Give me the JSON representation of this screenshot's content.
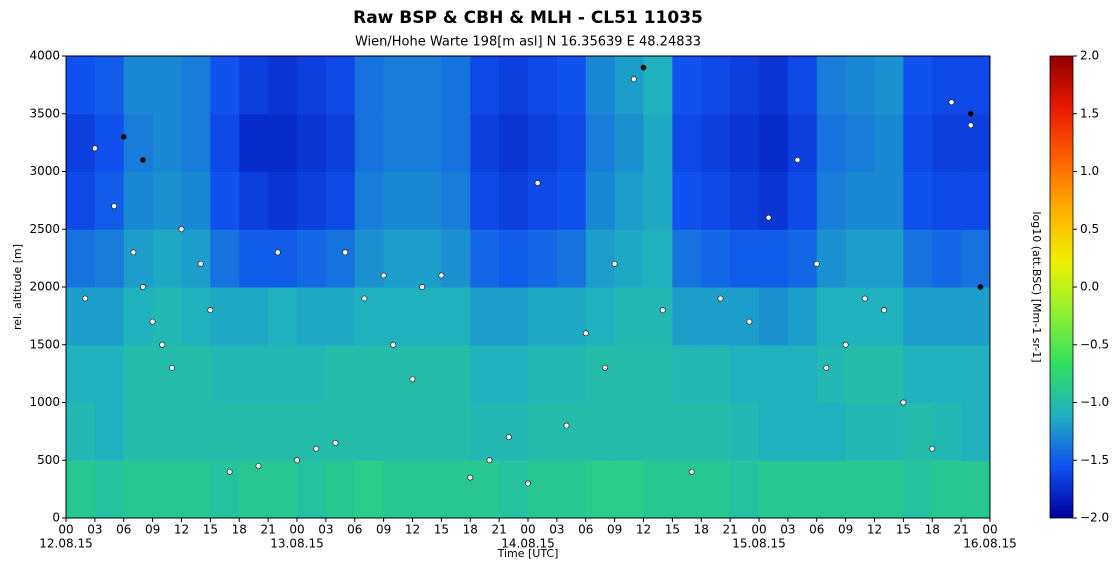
{
  "chart_data": {
    "type": "heatmap",
    "title": "Raw BSP & CBH & MLH - CL51 11035",
    "subtitle": "Wien/Hohe Warte   198[m asl]    N 16.35639  E 48.24833",
    "ylabel": "rel. altitude [m]",
    "xlabel": "Time [UTC]",
    "colorbar_label": "log10 (att.BSC) [Mm-1 sr-1]",
    "xlim": [
      0,
      96
    ],
    "ylim": [
      0,
      4000
    ],
    "yticks": [
      0,
      500,
      1000,
      1500,
      2000,
      2500,
      3000,
      3500,
      4000
    ],
    "xticks": [
      {
        "value": 0,
        "label": "00"
      },
      {
        "value": 3,
        "label": "03"
      },
      {
        "value": 6,
        "label": "06"
      },
      {
        "value": 9,
        "label": "09"
      },
      {
        "value": 12,
        "label": "12"
      },
      {
        "value": 15,
        "label": "15"
      },
      {
        "value": 18,
        "label": "18"
      },
      {
        "value": 21,
        "label": "21"
      },
      {
        "value": 24,
        "label": "00"
      },
      {
        "value": 27,
        "label": "03"
      },
      {
        "value": 30,
        "label": "06"
      },
      {
        "value": 33,
        "label": "09"
      },
      {
        "value": 36,
        "label": "12"
      },
      {
        "value": 39,
        "label": "15"
      },
      {
        "value": 42,
        "label": "18"
      },
      {
        "value": 45,
        "label": "21"
      },
      {
        "value": 48,
        "label": "00"
      },
      {
        "value": 51,
        "label": "03"
      },
      {
        "value": 54,
        "label": "06"
      },
      {
        "value": 57,
        "label": "09"
      },
      {
        "value": 60,
        "label": "12"
      },
      {
        "value": 63,
        "label": "15"
      },
      {
        "value": 66,
        "label": "18"
      },
      {
        "value": 69,
        "label": "21"
      },
      {
        "value": 72,
        "label": "00"
      },
      {
        "value": 75,
        "label": "03"
      },
      {
        "value": 78,
        "label": "06"
      },
      {
        "value": 81,
        "label": "09"
      },
      {
        "value": 84,
        "label": "12"
      },
      {
        "value": 87,
        "label": "15"
      },
      {
        "value": 90,
        "label": "18"
      },
      {
        "value": 93,
        "label": "21"
      },
      {
        "value": 96,
        "label": "00"
      }
    ],
    "xdate_ticks": [
      {
        "value": 0,
        "label": "12.08.15"
      },
      {
        "value": 24,
        "label": "13.08.15"
      },
      {
        "value": 48,
        "label": "14.08.15"
      },
      {
        "value": 72,
        "label": "15.08.15"
      },
      {
        "value": 96,
        "label": "16.08.15"
      }
    ],
    "clim": [
      -2,
      2
    ],
    "cticks": [
      {
        "value": 2,
        "label": "2.0"
      },
      {
        "value": 1.5,
        "label": "1.5"
      },
      {
        "value": 1,
        "label": "1.0"
      },
      {
        "value": 0.5,
        "label": "0.5"
      },
      {
        "value": 0,
        "label": "0.0"
      },
      {
        "value": -0.5,
        "label": "−0.5"
      },
      {
        "value": -1,
        "label": "−1.0"
      },
      {
        "value": -1.5,
        "label": "−1.5"
      },
      {
        "value": -2,
        "label": "−2.0"
      }
    ],
    "colormap": [
      "#00009a",
      "#1050f0",
      "#20b0c0",
      "#30e060",
      "#90f030",
      "#f0f000",
      "#ffb000",
      "#ff6000",
      "#e81800",
      "#900000"
    ],
    "xbins": [
      0,
      3,
      6,
      9,
      12,
      15,
      18,
      21,
      24,
      27,
      30,
      33,
      36,
      39,
      42,
      45,
      48,
      51,
      54,
      57,
      60,
      63,
      66,
      69,
      72,
      75,
      78,
      81,
      84,
      87,
      90,
      93,
      96
    ],
    "ybins": [
      0,
      500,
      1000,
      1500,
      2000,
      2500,
      3000,
      3500,
      4000
    ],
    "z": [
      [
        -0.9,
        -0.95,
        -0.9,
        -0.9,
        -0.9,
        -0.95,
        -0.9,
        -0.9,
        -0.95,
        -0.9,
        -0.85,
        -0.9,
        -0.9,
        -0.9,
        -0.9,
        -0.95,
        -0.9,
        -0.9,
        -0.85,
        -0.85,
        -0.9,
        -0.9,
        -0.9,
        -0.95,
        -0.9,
        -0.9,
        -0.9,
        -0.9,
        -0.9,
        -0.95,
        -0.9,
        -0.9
      ],
      [
        -1.05,
        -1.1,
        -1.0,
        -1.0,
        -1.0,
        -1.0,
        -1.0,
        -1.0,
        -1.0,
        -1.0,
        -1.0,
        -1.0,
        -1.0,
        -1.0,
        -1.05,
        -1.05,
        -1.0,
        -1.0,
        -1.0,
        -1.0,
        -1.0,
        -1.0,
        -1.0,
        -1.05,
        -1.1,
        -1.1,
        -1.1,
        -1.05,
        -1.05,
        -1.0,
        -1.05,
        -1.1
      ],
      [
        -1.1,
        -1.1,
        -1.0,
        -1.0,
        -1.0,
        -1.05,
        -1.05,
        -1.05,
        -1.05,
        -1.0,
        -1.0,
        -1.0,
        -1.0,
        -1.0,
        -1.1,
        -1.1,
        -1.05,
        -1.05,
        -1.0,
        -1.0,
        -1.0,
        -1.05,
        -1.05,
        -1.1,
        -1.1,
        -1.1,
        -1.05,
        -1.0,
        -1.0,
        -1.1,
        -1.1,
        -1.1
      ],
      [
        -1.2,
        -1.2,
        -1.1,
        -1.05,
        -1.1,
        -1.15,
        -1.15,
        -1.1,
        -1.15,
        -1.15,
        -1.1,
        -1.1,
        -1.1,
        -1.1,
        -1.2,
        -1.2,
        -1.15,
        -1.15,
        -1.1,
        -1.05,
        -1.05,
        -1.2,
        -1.2,
        -1.2,
        -1.25,
        -1.2,
        -1.1,
        -1.1,
        -1.1,
        -1.2,
        -1.2,
        -1.2
      ],
      [
        -1.4,
        -1.35,
        -1.2,
        -1.15,
        -1.2,
        -1.4,
        -1.5,
        -1.5,
        -1.45,
        -1.4,
        -1.25,
        -1.2,
        -1.2,
        -1.25,
        -1.45,
        -1.5,
        -1.45,
        -1.4,
        -1.2,
        -1.15,
        -1.1,
        -1.4,
        -1.45,
        -1.5,
        -1.5,
        -1.45,
        -1.25,
        -1.2,
        -1.2,
        -1.4,
        -1.45,
        -1.4
      ],
      [
        -1.6,
        -1.5,
        -1.3,
        -1.25,
        -1.3,
        -1.55,
        -1.65,
        -1.7,
        -1.65,
        -1.6,
        -1.35,
        -1.3,
        -1.3,
        -1.35,
        -1.6,
        -1.65,
        -1.6,
        -1.55,
        -1.3,
        -1.2,
        -1.15,
        -1.55,
        -1.6,
        -1.65,
        -1.7,
        -1.6,
        -1.35,
        -1.3,
        -1.3,
        -1.55,
        -1.6,
        -1.6
      ],
      [
        -1.65,
        -1.55,
        -1.35,
        -1.3,
        -1.35,
        -1.6,
        -1.75,
        -1.75,
        -1.7,
        -1.65,
        -1.4,
        -1.35,
        -1.35,
        -1.4,
        -1.65,
        -1.7,
        -1.65,
        -1.6,
        -1.35,
        -1.25,
        -1.15,
        -1.6,
        -1.65,
        -1.7,
        -1.75,
        -1.65,
        -1.4,
        -1.35,
        -1.3,
        -1.6,
        -1.65,
        -1.65
      ],
      [
        -1.55,
        -1.5,
        -1.3,
        -1.3,
        -1.35,
        -1.55,
        -1.65,
        -1.7,
        -1.65,
        -1.6,
        -1.4,
        -1.35,
        -1.35,
        -1.4,
        -1.6,
        -1.65,
        -1.6,
        -1.55,
        -1.3,
        -1.2,
        -1.1,
        -1.55,
        -1.6,
        -1.65,
        -1.7,
        -1.6,
        -1.35,
        -1.3,
        -1.25,
        -1.55,
        -1.6,
        -1.6
      ]
    ],
    "markers": {
      "color": "#ffffff",
      "x": [
        2,
        3,
        5,
        7,
        8,
        9,
        10,
        11,
        12,
        14,
        15,
        17,
        20,
        22,
        24,
        26,
        28,
        29,
        31,
        33,
        34,
        36,
        37,
        39,
        42,
        44,
        46,
        48,
        49,
        52,
        54,
        56,
        57,
        59,
        62,
        65,
        68,
        71,
        73,
        76,
        78,
        79,
        81,
        83,
        85,
        87,
        90,
        92,
        94
      ],
      "y": [
        1900,
        3200,
        2700,
        2300,
        2000,
        1700,
        1500,
        1300,
        2500,
        2200,
        1800,
        400,
        450,
        2300,
        500,
        600,
        650,
        2300,
        1900,
        2100,
        1500,
        1200,
        2000,
        2100,
        350,
        500,
        700,
        300,
        2900,
        800,
        1600,
        1300,
        2200,
        3800,
        1800,
        400,
        1900,
        1700,
        2600,
        3100,
        2200,
        1300,
        1500,
        1900,
        1800,
        1000,
        600,
        3600,
        3400
      ]
    },
    "markers2": {
      "color": "#000000",
      "x": [
        6,
        8,
        60,
        94,
        95
      ],
      "y": [
        3300,
        3100,
        3900,
        3500,
        2000
      ]
    }
  }
}
